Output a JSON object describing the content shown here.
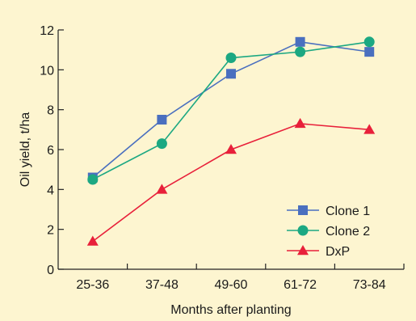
{
  "chart_data": {
    "type": "line",
    "categories": [
      "25-36",
      "37-48",
      "49-60",
      "61-72",
      "73-84"
    ],
    "series": [
      {
        "name": "Clone 1",
        "values": [
          4.6,
          7.5,
          9.8,
          11.4,
          10.9
        ],
        "color": "#4a6fbf",
        "marker": "square"
      },
      {
        "name": "Clone 2",
        "values": [
          4.5,
          6.3,
          10.6,
          10.9,
          11.4
        ],
        "color": "#1ca882",
        "marker": "circle"
      },
      {
        "name": "DxP",
        "values": [
          1.4,
          4.0,
          6.0,
          7.3,
          7.0
        ],
        "color": "#e8203a",
        "marker": "triangle"
      }
    ],
    "xlabel": "Months after planting",
    "ylabel": "Oil yield, t/ha",
    "ylim": [
      0,
      12
    ],
    "yticks": [
      0,
      2,
      4,
      6,
      8,
      10,
      12
    ],
    "grid": false,
    "legend_position": "bottom-right",
    "background_color": "#fdf5d0"
  }
}
